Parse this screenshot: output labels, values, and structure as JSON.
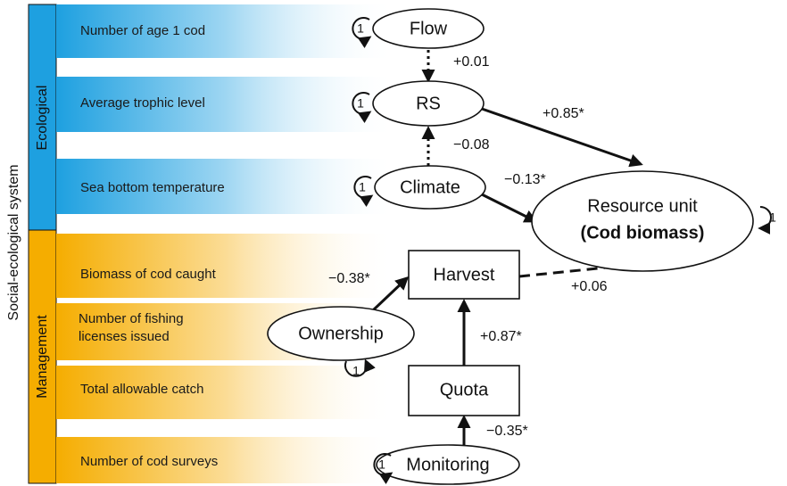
{
  "side_label": "Social-ecological system",
  "groups": [
    {
      "label": "Ecological",
      "indicators": [
        "Number of age 1 cod",
        "Average trophic level",
        "Sea bottom temperature"
      ]
    },
    {
      "label": "Management",
      "indicators": [
        "Biomass of cod caught",
        "Number of fishing licenses issued",
        "Total allowable catch",
        "Number of cod surveys"
      ]
    }
  ],
  "nodes": [
    {
      "label": "Flow",
      "variance": "1"
    },
    {
      "label": "RS",
      "variance": "1"
    },
    {
      "label": "Climate",
      "variance": "1"
    },
    {
      "label": "Resource unit",
      "sublabel": "(Cod biomass)",
      "variance": "1"
    },
    {
      "label": "Harvest"
    },
    {
      "label": "Ownership",
      "variance": "1"
    },
    {
      "label": "Quota"
    },
    {
      "label": "Monitoring",
      "variance": "1"
    }
  ],
  "edges": [
    {
      "label": "+0.01"
    },
    {
      "label": "+0.85*"
    },
    {
      "label": "−0.08"
    },
    {
      "label": "−0.13*"
    },
    {
      "label": "−0.38*"
    },
    {
      "label": "+0.06"
    },
    {
      "label": "+0.87*"
    },
    {
      "label": "−0.35*"
    }
  ]
}
